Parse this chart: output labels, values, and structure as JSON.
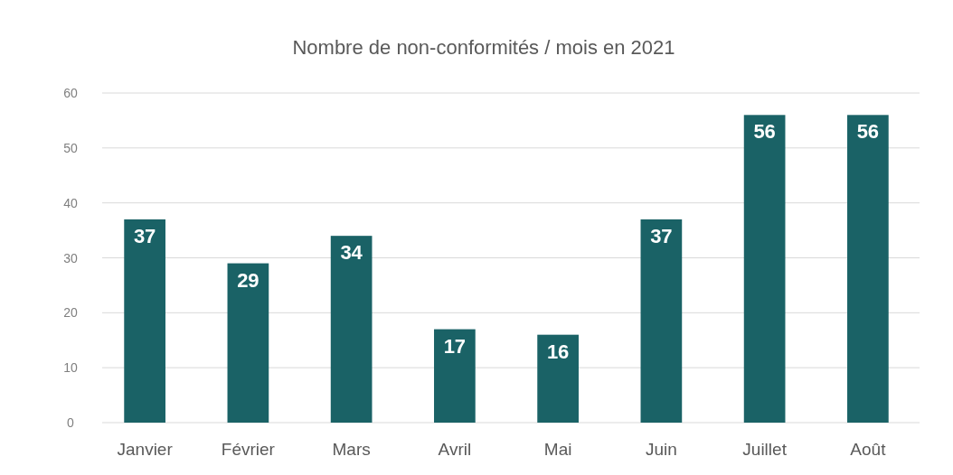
{
  "chart_data": {
    "type": "bar",
    "title": "Nombre de non-conformités / mois en 2021",
    "categories": [
      "Janvier",
      "Février",
      "Mars",
      "Avril",
      "Mai",
      "Juin",
      "Juillet",
      "Août"
    ],
    "values": [
      37,
      29,
      34,
      17,
      16,
      37,
      56,
      56
    ],
    "color": "#1a6266",
    "ylim": [
      0,
      60
    ],
    "yticks": [
      0,
      10,
      20,
      30,
      40,
      50,
      60
    ],
    "grid": "y",
    "data_labels": true
  }
}
